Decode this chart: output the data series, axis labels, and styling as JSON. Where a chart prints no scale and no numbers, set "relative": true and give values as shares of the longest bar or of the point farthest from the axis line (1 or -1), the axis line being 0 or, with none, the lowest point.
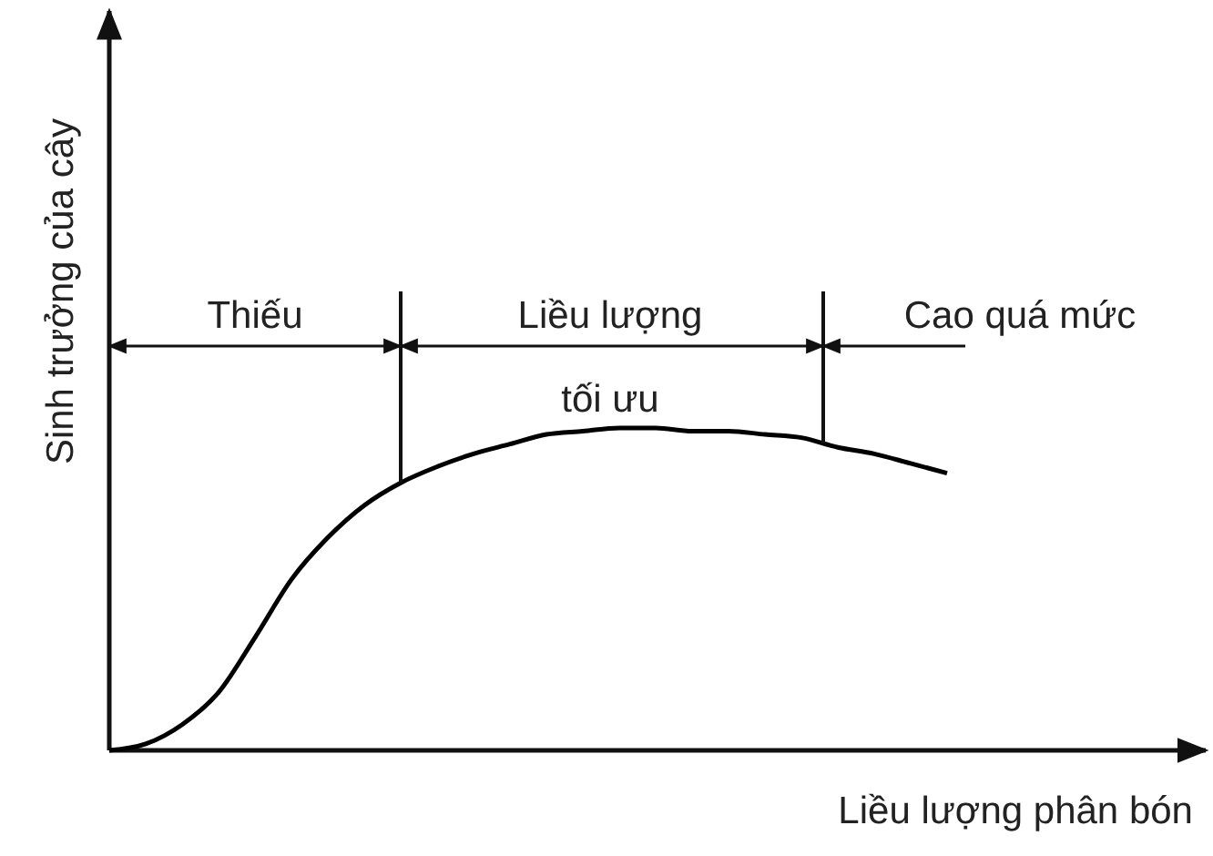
{
  "chart_data": {
    "type": "line",
    "relative": true,
    "xlabel": "Liều lượng phân bón",
    "ylabel": "Sinh trưởng của cây",
    "categories": [
      null,
      null,
      null,
      null,
      null,
      null,
      null,
      null,
      null,
      null,
      null,
      null,
      null,
      null,
      null,
      null,
      null,
      null,
      null,
      null,
      null,
      null,
      null,
      null
    ],
    "series": [
      {
        "color": "#000000",
        "values": [
          0,
          0.02,
          0.08,
          0.18,
          0.35,
          0.53,
          0.66,
          0.76,
          0.83,
          0.88,
          0.92,
          0.95,
          0.98,
          0.99,
          1,
          1,
          0.99,
          0.99,
          0.98,
          0.97,
          0.94,
          0.92,
          0.89,
          0.86
        ]
      }
    ],
    "annotations": [
      "Thiếu",
      "Liều lượng tối ưu",
      "Cao quá mức"
    ],
    "marker": "none",
    "line_style": "solid"
  }
}
